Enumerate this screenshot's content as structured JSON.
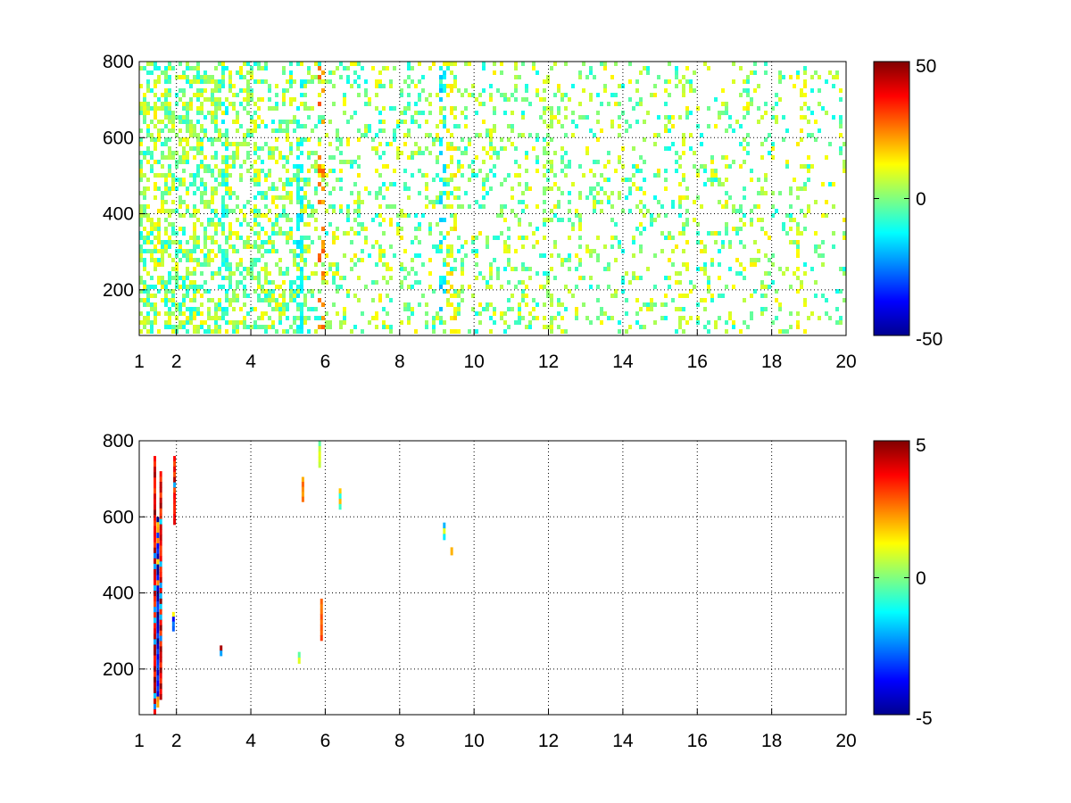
{
  "chart_data": [
    {
      "type": "heatmap",
      "title": "",
      "xlabel": "",
      "ylabel": "",
      "xlim": [
        1,
        20
      ],
      "ylim": [
        80,
        800
      ],
      "grid": true,
      "x_ticks": [
        "1",
        "2",
        "4",
        "6",
        "8",
        "10",
        "12",
        "14",
        "16",
        "18",
        "20"
      ],
      "y_ticks": [
        "200",
        "400",
        "600",
        "800"
      ],
      "colorbar": {
        "colormap": "jet",
        "clim": [
          -50,
          50
        ],
        "tick_labels": [
          "50",
          "0",
          "-50"
        ]
      },
      "description_of_values": "sparse field of values mostly between -15 and +20; dense near x 1-6, sparse columns beyond",
      "features": [
        {
          "x": 1.5,
          "value": 10,
          "density": 0.5
        },
        {
          "x": 3.3,
          "value": -10,
          "density": 0.55
        },
        {
          "x": 5.3,
          "value": -12,
          "density": 0.6
        },
        {
          "x": 5.9,
          "value": 25,
          "density": 0.35
        },
        {
          "x": 9.2,
          "value": -15,
          "density": 0.45
        },
        {
          "x": 9.4,
          "value": 12,
          "density": 0.45
        },
        {
          "x": 12.0,
          "value": 5,
          "density": 0.35
        },
        {
          "x": 15.6,
          "value": 8,
          "density": 0.3
        },
        {
          "x": 18.8,
          "value": 10,
          "density": 0.25
        }
      ]
    },
    {
      "type": "heatmap",
      "title": "",
      "xlabel": "",
      "ylabel": "",
      "xlim": [
        1,
        20
      ],
      "ylim": [
        80,
        800
      ],
      "grid": true,
      "x_ticks": [
        "1",
        "2",
        "4",
        "6",
        "8",
        "10",
        "12",
        "14",
        "16",
        "18",
        "20"
      ],
      "y_ticks": [
        "200",
        "400",
        "600",
        "800"
      ],
      "colorbar": {
        "colormap": "jet",
        "clim": [
          -5,
          5
        ],
        "tick_labels": [
          "5",
          "0",
          "-5"
        ]
      },
      "streaks": [
        {
          "x": 1.42,
          "y0": 80,
          "y1": 760,
          "value": 5
        },
        {
          "x": 1.5,
          "y0": 100,
          "y1": 600,
          "value": -5
        },
        {
          "x": 1.58,
          "y0": 120,
          "y1": 720,
          "value": 5
        },
        {
          "x": 1.95,
          "y0": 580,
          "y1": 760,
          "value": 5
        },
        {
          "x": 1.92,
          "y0": 300,
          "y1": 350,
          "value": -4
        },
        {
          "x": 3.2,
          "y0": 235,
          "y1": 262,
          "value": 5
        },
        {
          "x": 5.3,
          "y0": 215,
          "y1": 245,
          "value": 1
        },
        {
          "x": 5.4,
          "y0": 640,
          "y1": 705,
          "value": 3
        },
        {
          "x": 5.85,
          "y0": 730,
          "y1": 800,
          "value": 1
        },
        {
          "x": 5.9,
          "y0": 275,
          "y1": 385,
          "value": 4
        },
        {
          "x": 6.4,
          "y0": 620,
          "y1": 675,
          "value": 2
        },
        {
          "x": 9.2,
          "y0": 540,
          "y1": 585,
          "value": -2
        },
        {
          "x": 9.4,
          "y0": 500,
          "y1": 520,
          "value": 3
        }
      ]
    }
  ],
  "colors": {
    "grid": "#000000",
    "axis": "#000000",
    "background": "#ffffff"
  }
}
